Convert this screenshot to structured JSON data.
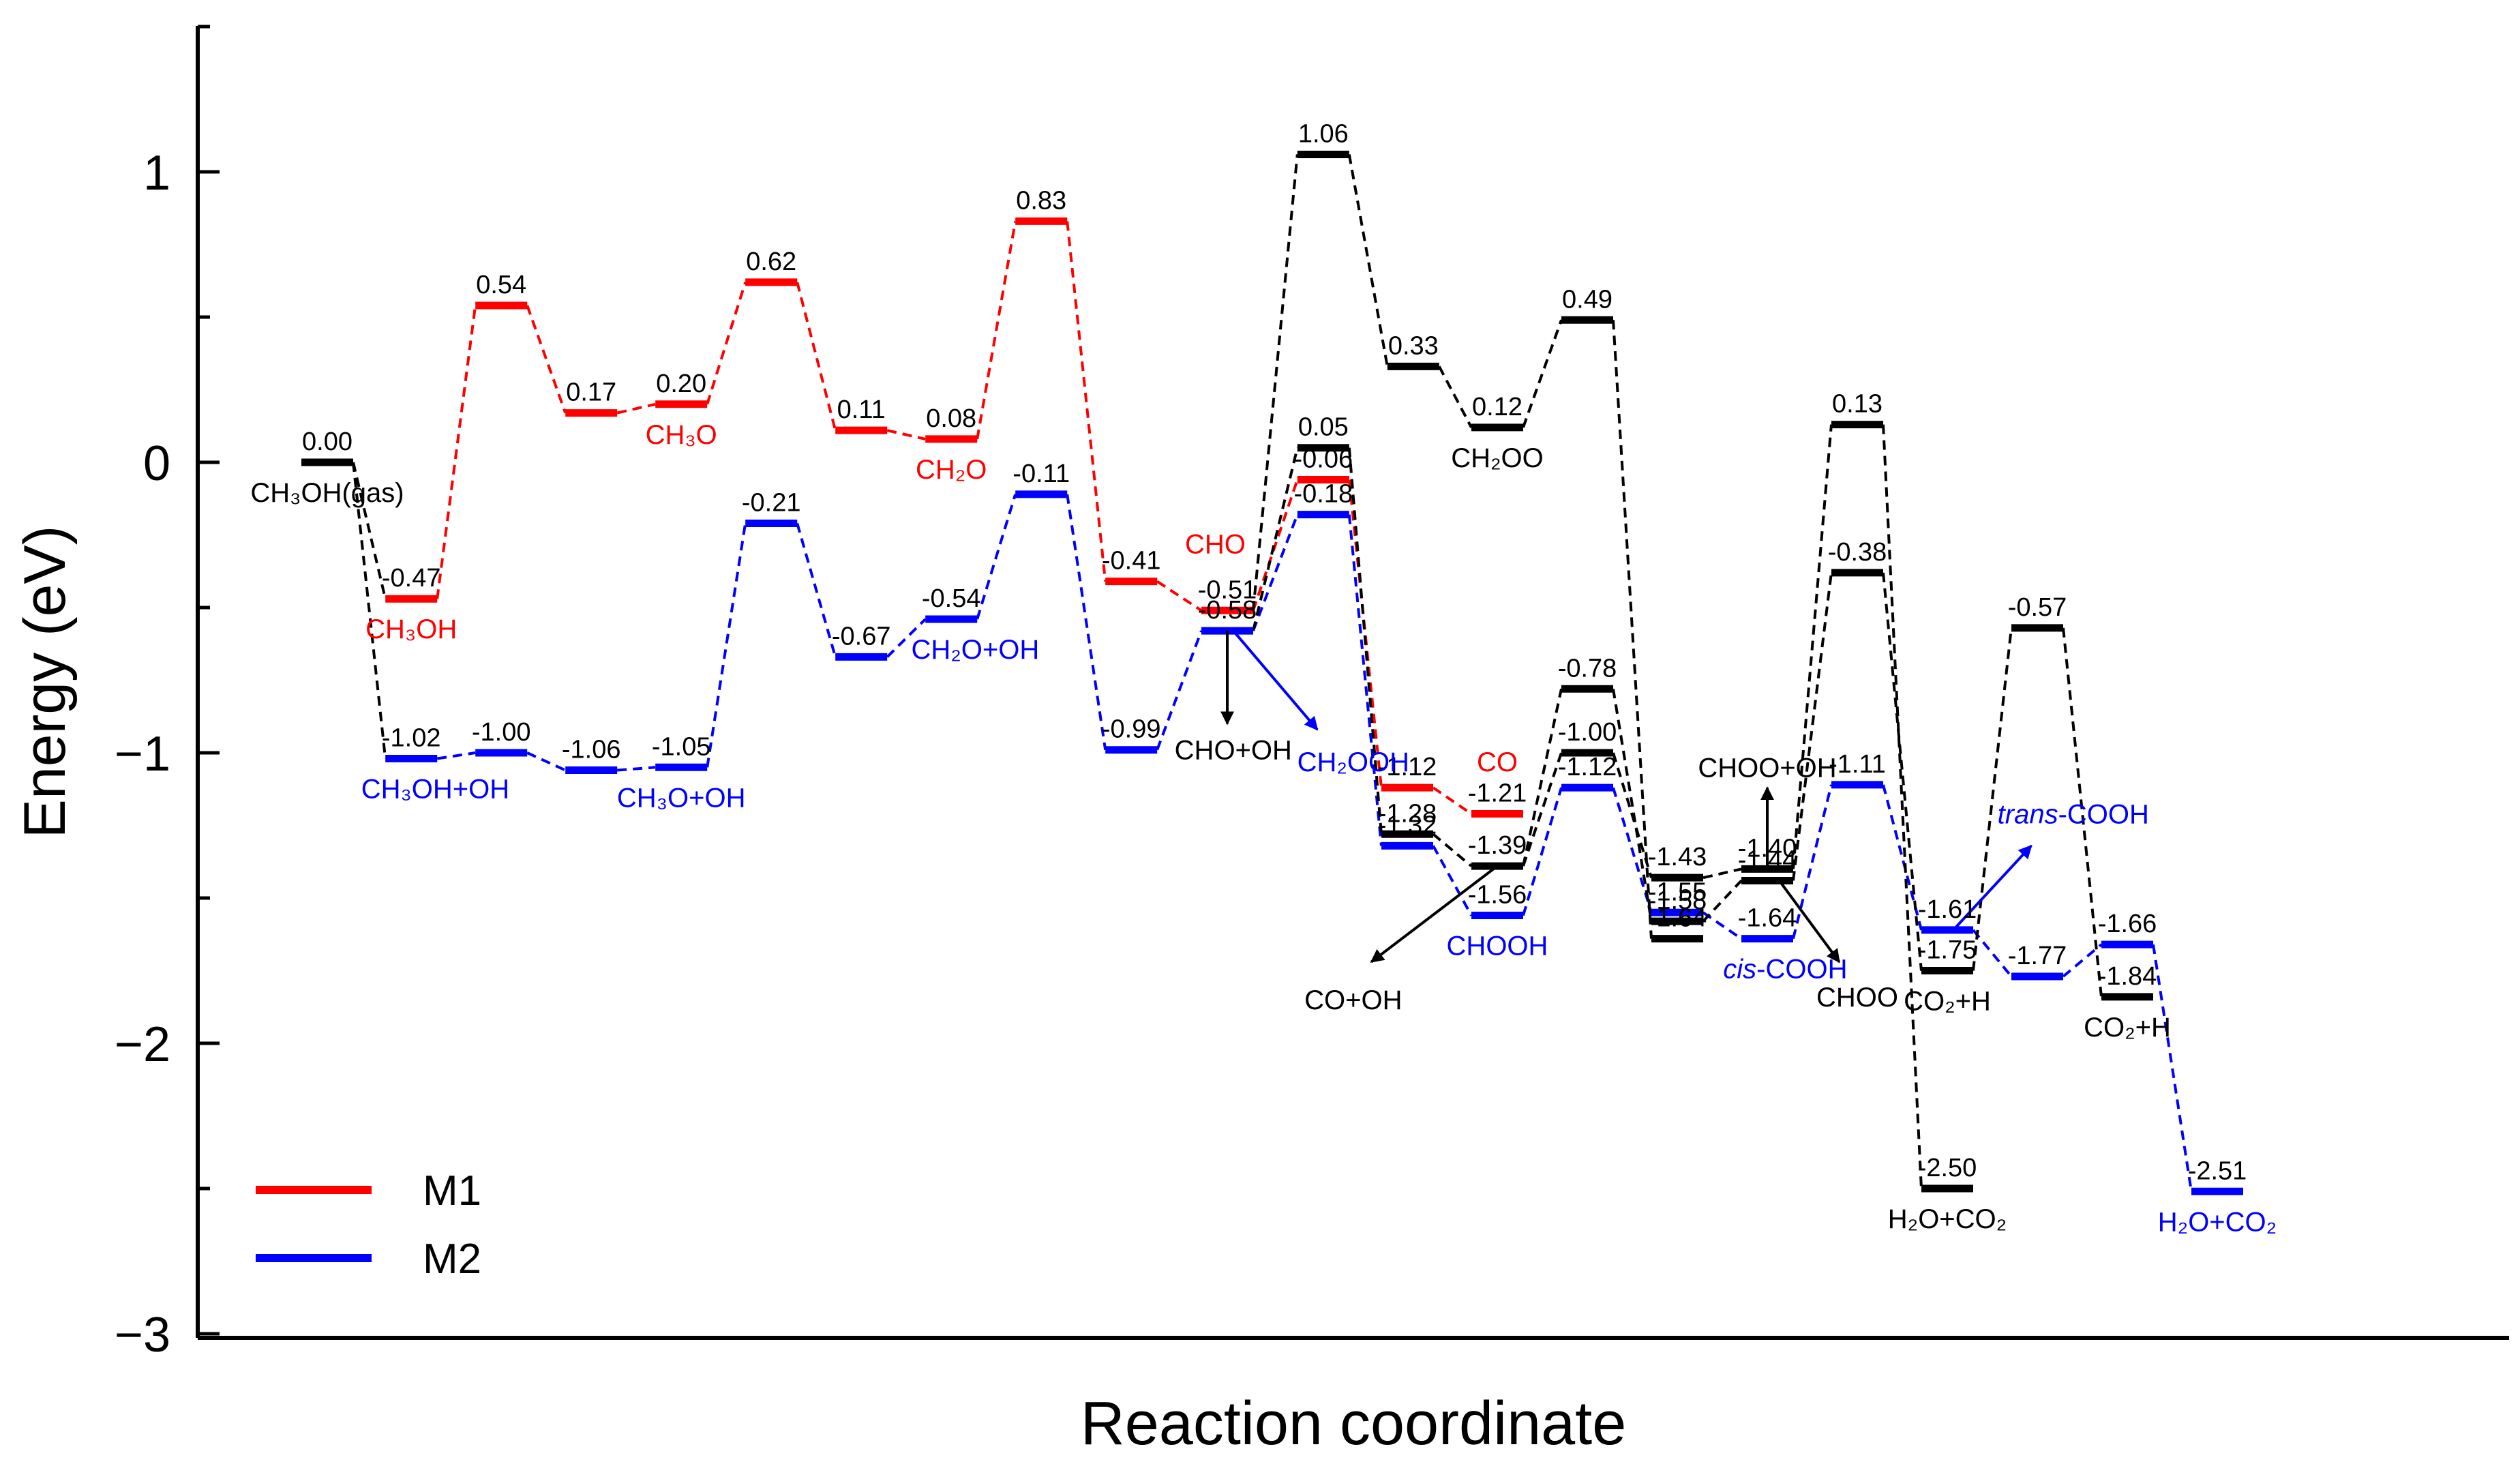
{
  "chart_data": {
    "type": "energy_profile",
    "xlabel": "Reaction coordinate",
    "ylabel": "Energy (eV)",
    "ylim": [
      -3,
      1.5
    ],
    "yticks": [
      -3,
      -2,
      -1,
      0,
      1
    ],
    "ytick_labels": [
      "−3",
      "−2",
      "−1",
      "0",
      "1"
    ],
    "legend_position": "bottom-left",
    "colors": {
      "M1": "#ff0000",
      "M2": "#0000ff",
      "other": "#000000"
    },
    "legend": [
      {
        "name": "M1",
        "color": "#ff0000"
      },
      {
        "name": "M2",
        "color": "#0000ff"
      }
    ],
    "levels": [
      {
        "id": "k0",
        "x": 0.55,
        "e": 0.0,
        "c": "#000000",
        "label": "0.00"
      },
      {
        "id": "r1",
        "x": 1.25,
        "e": -0.47,
        "c": "#ff0000",
        "label": "-0.47"
      },
      {
        "id": "r2",
        "x": 2.0,
        "e": 0.54,
        "c": "#ff0000",
        "label": "0.54"
      },
      {
        "id": "r3",
        "x": 2.75,
        "e": 0.17,
        "c": "#ff0000",
        "label": "0.17"
      },
      {
        "id": "r4",
        "x": 3.5,
        "e": 0.2,
        "c": "#ff0000",
        "label": "0.20"
      },
      {
        "id": "r5",
        "x": 4.25,
        "e": 0.62,
        "c": "#ff0000",
        "label": "0.62"
      },
      {
        "id": "r6",
        "x": 5.0,
        "e": 0.11,
        "c": "#ff0000",
        "label": "0.11"
      },
      {
        "id": "r7",
        "x": 5.75,
        "e": 0.08,
        "c": "#ff0000",
        "label": "0.08"
      },
      {
        "id": "r8",
        "x": 6.5,
        "e": 0.83,
        "c": "#ff0000",
        "label": "0.83"
      },
      {
        "id": "r9",
        "x": 7.25,
        "e": -0.41,
        "c": "#ff0000",
        "label": "-0.41"
      },
      {
        "id": "r10",
        "x": 8.05,
        "e": -0.51,
        "c": "#ff0000",
        "label": "-0.51"
      },
      {
        "id": "r11",
        "x": 8.85,
        "e": -0.06,
        "c": "#ff0000",
        "label": "-0.06"
      },
      {
        "id": "r12",
        "x": 9.55,
        "e": -1.12,
        "c": "#ff0000",
        "label": "-1.12"
      },
      {
        "id": "r13",
        "x": 10.3,
        "e": -1.21,
        "c": "#ff0000",
        "label": "-1.21"
      },
      {
        "id": "b1",
        "x": 1.25,
        "e": -1.02,
        "c": "#0000ff",
        "label": "-1.02"
      },
      {
        "id": "b2",
        "x": 2.0,
        "e": -1.0,
        "c": "#0000ff",
        "label": "-1.00"
      },
      {
        "id": "b3",
        "x": 2.75,
        "e": -1.06,
        "c": "#0000ff",
        "label": "-1.06"
      },
      {
        "id": "b4",
        "x": 3.5,
        "e": -1.05,
        "c": "#0000ff",
        "label": "-1.05"
      },
      {
        "id": "b5",
        "x": 4.25,
        "e": -0.21,
        "c": "#0000ff",
        "label": "-0.21"
      },
      {
        "id": "b6",
        "x": 5.0,
        "e": -0.67,
        "c": "#0000ff",
        "label": "-0.67"
      },
      {
        "id": "b7",
        "x": 5.75,
        "e": -0.54,
        "c": "#0000ff",
        "label": "-0.54"
      },
      {
        "id": "b8",
        "x": 6.5,
        "e": -0.11,
        "c": "#0000ff",
        "label": "-0.11"
      },
      {
        "id": "b9",
        "x": 7.25,
        "e": -0.99,
        "c": "#0000ff",
        "label": "-0.99"
      },
      {
        "id": "b10",
        "x": 8.05,
        "e": -0.58,
        "c": "#0000ff",
        "label": "-0.58"
      },
      {
        "id": "b11",
        "x": 8.85,
        "e": -0.18,
        "c": "#0000ff",
        "label": "-0.18"
      },
      {
        "id": "b12",
        "x": 9.55,
        "e": -1.32,
        "c": "#0000ff",
        "label": "-1.32"
      },
      {
        "id": "b13",
        "x": 10.3,
        "e": -1.56,
        "c": "#0000ff",
        "label": "-1.56"
      },
      {
        "id": "b14",
        "x": 11.05,
        "e": -1.12,
        "c": "#0000ff",
        "label": "-1.12"
      },
      {
        "id": "b15",
        "x": 11.8,
        "e": -1.55,
        "c": "#0000ff",
        "label": "-1.55"
      },
      {
        "id": "b16",
        "x": 12.55,
        "e": -1.64,
        "c": "#0000ff",
        "label": "-1.64"
      },
      {
        "id": "b17",
        "x": 13.3,
        "e": -1.11,
        "c": "#0000ff",
        "label": "-1.11"
      },
      {
        "id": "b18",
        "x": 14.05,
        "e": -1.61,
        "c": "#0000ff",
        "label": "-1.61"
      },
      {
        "id": "b19",
        "x": 14.8,
        "e": -1.77,
        "c": "#0000ff",
        "label": "-1.77"
      },
      {
        "id": "b20",
        "x": 15.55,
        "e": -1.66,
        "c": "#0000ff",
        "label": "-1.66"
      },
      {
        "id": "b21",
        "x": 16.3,
        "e": -2.51,
        "c": "#0000ff",
        "label": "-2.51"
      },
      {
        "id": "k1",
        "x": 8.85,
        "e": 1.06,
        "c": "#000000",
        "label": "1.06"
      },
      {
        "id": "k2",
        "x": 9.6,
        "e": 0.33,
        "c": "#000000",
        "label": "0.33"
      },
      {
        "id": "k3",
        "x": 10.3,
        "e": 0.12,
        "c": "#000000",
        "label": "0.12"
      },
      {
        "id": "k4",
        "x": 11.05,
        "e": 0.49,
        "c": "#000000",
        "label": "0.49"
      },
      {
        "id": "k5",
        "x": 8.85,
        "e": 0.05,
        "c": "#000000",
        "label": "0.05"
      },
      {
        "id": "k6",
        "x": 9.55,
        "e": -1.28,
        "c": "#000000",
        "label": "-1.28"
      },
      {
        "id": "k7",
        "x": 10.3,
        "e": -1.39,
        "c": "#000000",
        "label": "-1.39"
      },
      {
        "id": "k8",
        "x": 11.05,
        "e": -0.78,
        "c": "#000000",
        "label": "-0.78"
      },
      {
        "id": "k9",
        "x": 11.05,
        "e": -1.0,
        "c": "#000000",
        "label": "-1.00"
      },
      {
        "id": "k10",
        "x": 11.8,
        "e": -1.43,
        "c": "#000000",
        "label": "-1.43"
      },
      {
        "id": "k11",
        "x": 11.8,
        "e": -1.58,
        "c": "#000000",
        "label": "-1.58"
      },
      {
        "id": "k12",
        "x": 11.8,
        "e": -1.64,
        "c": "#000000",
        "label": "-1.64"
      },
      {
        "id": "k13",
        "x": 12.55,
        "e": -1.4,
        "c": "#000000",
        "label": "-1.40"
      },
      {
        "id": "k14",
        "x": 12.55,
        "e": -1.44,
        "c": "#000000",
        "label": "-1.44"
      },
      {
        "id": "k15",
        "x": 13.3,
        "e": 0.13,
        "c": "#000000",
        "label": "0.13"
      },
      {
        "id": "k16",
        "x": 13.3,
        "e": -0.38,
        "c": "#000000",
        "label": "-0.38"
      },
      {
        "id": "k17",
        "x": 14.05,
        "e": -1.75,
        "c": "#000000",
        "label": "-1.75"
      },
      {
        "id": "k18",
        "x": 14.05,
        "e": -2.5,
        "c": "#000000",
        "label": "-2.50"
      },
      {
        "id": "k19",
        "x": 14.8,
        "e": -0.57,
        "c": "#000000",
        "label": "-0.57"
      },
      {
        "id": "k20",
        "x": 15.55,
        "e": -1.84,
        "c": "#000000",
        "label": "-1.84"
      }
    ],
    "connections": [
      [
        "k0",
        "r1"
      ],
      [
        "r1",
        "r2"
      ],
      [
        "r2",
        "r3"
      ],
      [
        "r3",
        "r4"
      ],
      [
        "r4",
        "r5"
      ],
      [
        "r5",
        "r6"
      ],
      [
        "r6",
        "r7"
      ],
      [
        "r7",
        "r8"
      ],
      [
        "r8",
        "r9"
      ],
      [
        "r9",
        "r10"
      ],
      [
        "r10",
        "r11"
      ],
      [
        "r11",
        "r12"
      ],
      [
        "r12",
        "r13"
      ],
      [
        "k0",
        "b1"
      ],
      [
        "b1",
        "b2"
      ],
      [
        "b2",
        "b3"
      ],
      [
        "b3",
        "b4"
      ],
      [
        "b4",
        "b5"
      ],
      [
        "b5",
        "b6"
      ],
      [
        "b6",
        "b7"
      ],
      [
        "b7",
        "b8"
      ],
      [
        "b8",
        "b9"
      ],
      [
        "b9",
        "b10"
      ],
      [
        "b10",
        "b11"
      ],
      [
        "b11",
        "b12"
      ],
      [
        "b12",
        "b13"
      ],
      [
        "b13",
        "b14"
      ],
      [
        "b14",
        "b15"
      ],
      [
        "b15",
        "b16"
      ],
      [
        "b16",
        "b17"
      ],
      [
        "b17",
        "b18"
      ],
      [
        "b18",
        "b19"
      ],
      [
        "b19",
        "b20"
      ],
      [
        "b20",
        "b21"
      ],
      [
        "r10",
        "k1"
      ],
      [
        "k1",
        "k2"
      ],
      [
        "k2",
        "k3"
      ],
      [
        "k3",
        "k4"
      ],
      [
        "k4",
        "k12"
      ],
      [
        "b10",
        "k5"
      ],
      [
        "k5",
        "k6"
      ],
      [
        "k6",
        "k7"
      ],
      [
        "k7",
        "k8"
      ],
      [
        "k8",
        "k11"
      ],
      [
        "k7",
        "k9"
      ],
      [
        "k9",
        "k10"
      ],
      [
        "k10",
        "k13"
      ],
      [
        "k11",
        "k14"
      ],
      [
        "k13",
        "k15"
      ],
      [
        "k15",
        "k18"
      ],
      [
        "k14",
        "k16"
      ],
      [
        "k16",
        "k17"
      ],
      [
        "k17",
        "k19"
      ],
      [
        "k19",
        "k20"
      ]
    ],
    "species": [
      {
        "text": "CH₃OH(gas)",
        "x": 0.55,
        "e": 0.0,
        "c": "#000000",
        "side": "below"
      },
      {
        "text": "CH₃OH",
        "x": 1.25,
        "e": -0.47,
        "c": "#ff0000",
        "side": "below"
      },
      {
        "text": "CH₃O",
        "x": 3.5,
        "e": 0.2,
        "c": "#ff0000",
        "side": "below"
      },
      {
        "text": "CH₂O",
        "x": 5.75,
        "e": 0.08,
        "c": "#ff0000",
        "side": "below"
      },
      {
        "text": "CHO",
        "x": 7.95,
        "e": -0.28,
        "c": "#ff0000",
        "side": "at"
      },
      {
        "text": "CO",
        "x": 10.3,
        "e": -1.03,
        "c": "#ff0000",
        "side": "at"
      },
      {
        "text": "CH₃OH+OH",
        "x": 1.45,
        "e": -1.02,
        "c": "#0000ff",
        "side": "below"
      },
      {
        "text": "CH₃O+OH",
        "x": 3.5,
        "e": -1.05,
        "c": "#0000ff",
        "side": "below"
      },
      {
        "text": "CH₂O+OH",
        "x": 5.95,
        "e": -0.54,
        "c": "#0000ff",
        "side": "below"
      },
      {
        "text": "CH₂OOH",
        "x": 9.1,
        "e": -1.03,
        "c": "#0000ff",
        "side": "at"
      },
      {
        "text": "CHOOH",
        "x": 10.3,
        "e": -1.56,
        "c": "#0000ff",
        "side": "below"
      },
      {
        "text": "cis-COOH",
        "x": 12.7,
        "e": -1.64,
        "c": "#0000ff",
        "side": "below",
        "italic_prefix": "cis"
      },
      {
        "text": "trans-COOH",
        "x": 15.1,
        "e": -1.21,
        "c": "#0000ff",
        "side": "at",
        "italic_prefix": "trans"
      },
      {
        "text": "H₂O+CO₂",
        "x": 16.3,
        "e": -2.51,
        "c": "#0000ff",
        "side": "below"
      },
      {
        "text": "CH₂OO",
        "x": 10.3,
        "e": 0.12,
        "c": "#000000",
        "side": "below"
      },
      {
        "text": "CHO+OH",
        "x": 8.1,
        "e": -0.99,
        "c": "#000000",
        "side": "at"
      },
      {
        "text": "CO+OH",
        "x": 9.1,
        "e": -1.85,
        "c": "#000000",
        "side": "at"
      },
      {
        "text": "CHOO+OH",
        "x": 12.55,
        "e": -1.05,
        "c": "#000000",
        "side": "at"
      },
      {
        "text": "CHOO",
        "x": 13.3,
        "e": -1.84,
        "c": "#000000",
        "side": "at"
      },
      {
        "text": "CO₂+H",
        "x": 14.05,
        "e": -1.75,
        "c": "#000000",
        "side": "below"
      },
      {
        "text": "CO₂+H",
        "x": 15.55,
        "e": -1.84,
        "c": "#000000",
        "side": "below"
      },
      {
        "text": "H₂O+CO₂",
        "x": 14.05,
        "e": -2.5,
        "c": "#000000",
        "side": "below"
      }
    ],
    "arrows": [
      {
        "from": [
          8.05,
          -0.58
        ],
        "to": [
          8.05,
          -0.9
        ],
        "c": "#000000"
      },
      {
        "from": [
          8.1,
          -0.58
        ],
        "to": [
          8.8,
          -0.92
        ],
        "c": "#0000ff"
      },
      {
        "from": [
          10.3,
          -1.39
        ],
        "to": [
          9.25,
          -1.72
        ],
        "c": "#000000"
      },
      {
        "from": [
          12.55,
          -1.4
        ],
        "to": [
          12.55,
          -1.12
        ],
        "c": "#000000"
      },
      {
        "from": [
          12.65,
          -1.44
        ],
        "to": [
          13.15,
          -1.72
        ],
        "c": "#000000"
      },
      {
        "from": [
          14.1,
          -1.61
        ],
        "to": [
          14.75,
          -1.32
        ],
        "c": "#0000ff"
      }
    ]
  }
}
